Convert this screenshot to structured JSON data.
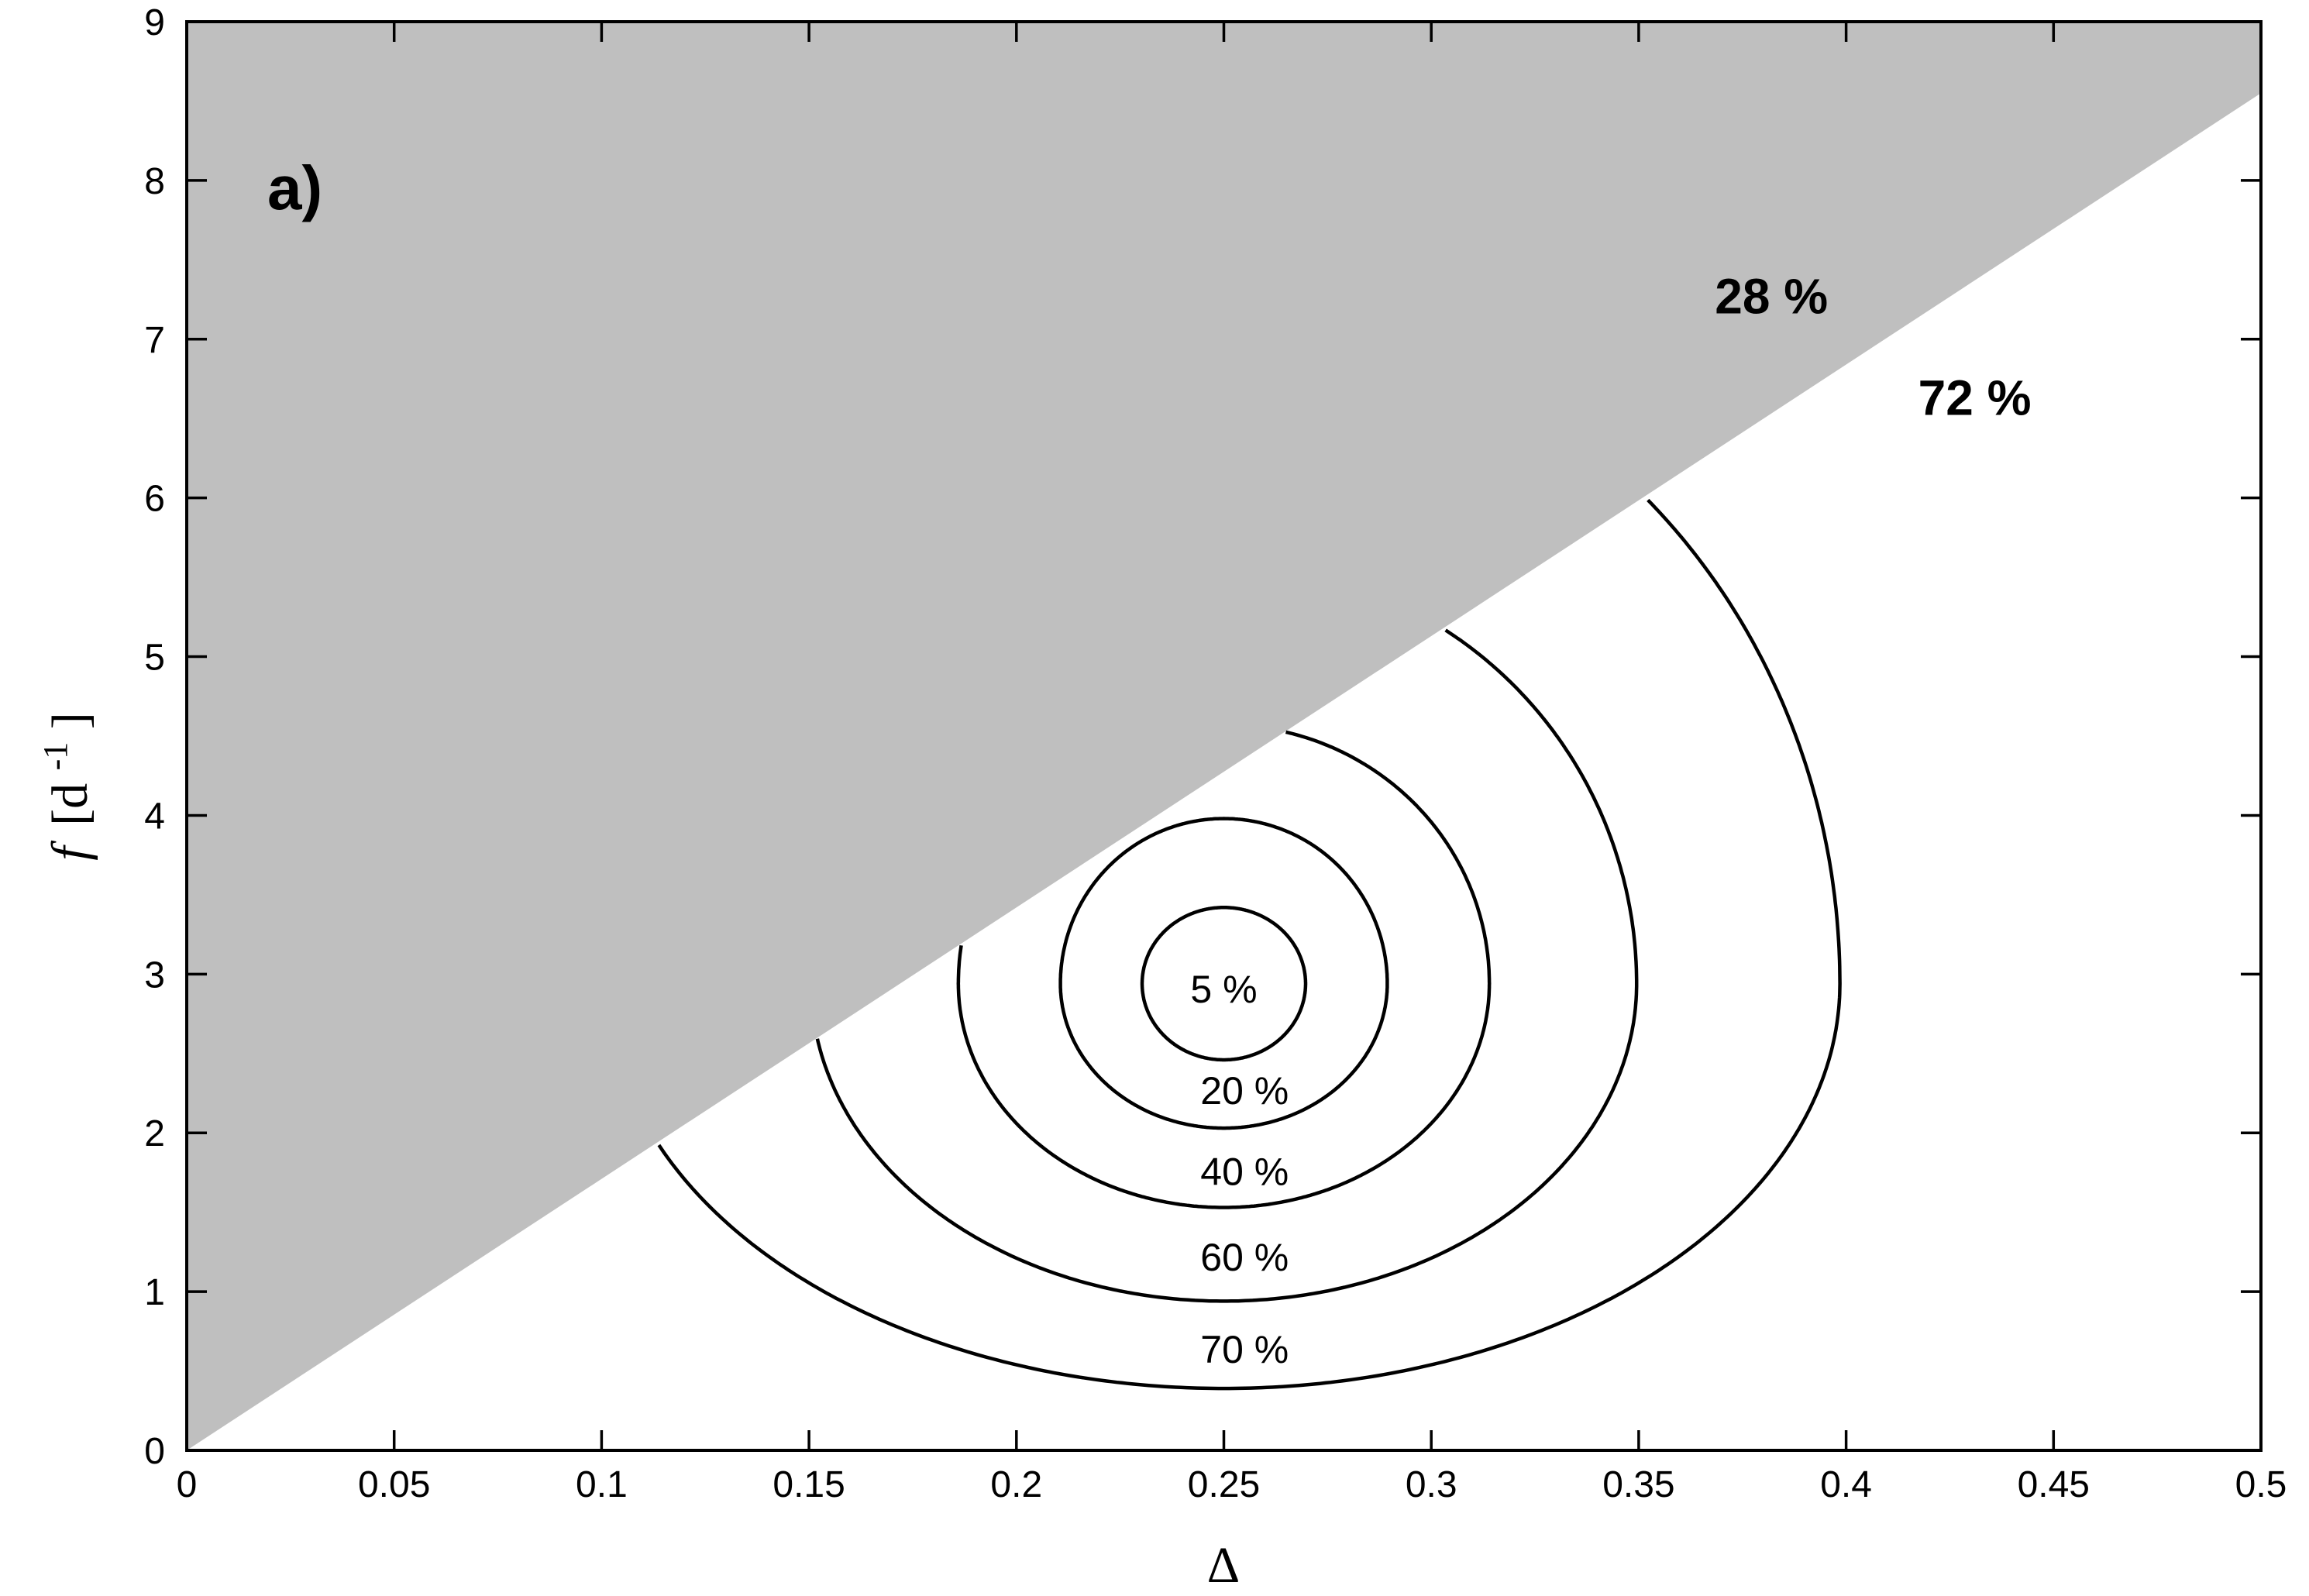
{
  "chart_data": {
    "type": "contour",
    "panel_label": "a)",
    "xlabel": "Δ",
    "ylabel": {
      "var": "f",
      "unit": "[d",
      "sup": "-1",
      "close": "]"
    },
    "xlim": [
      0,
      0.5
    ],
    "ylim": [
      0,
      9
    ],
    "xticks": [
      0,
      0.05,
      0.1,
      0.15,
      0.2,
      0.25,
      0.3,
      0.35,
      0.4,
      0.45,
      0.5
    ],
    "yticks": [
      0,
      1,
      2,
      3,
      4,
      5,
      6,
      7,
      8,
      9
    ],
    "xtick_labels": [
      "0",
      "0.05",
      "0.1",
      "0.15",
      "0.2",
      "0.25",
      "0.3",
      "0.35",
      "0.4",
      "0.45",
      "0.5"
    ],
    "ytick_labels": [
      "0",
      "1",
      "2",
      "3",
      "4",
      "5",
      "6",
      "7",
      "8",
      "9"
    ],
    "shaded_region": {
      "color": "#bfbfbf",
      "boundary": [
        [
          0,
          0
        ],
        [
          0.5,
          8.55
        ]
      ]
    },
    "region_labels": [
      {
        "text": "28 %",
        "x": 0.382,
        "y": 7.27
      },
      {
        "text": "72 %",
        "x": 0.431,
        "y": 6.63
      }
    ],
    "center": {
      "x": 0.25,
      "y": 2.94
    },
    "contours": [
      {
        "level": "5 %",
        "a": 0.0197,
        "b_top": 0.48,
        "b_bottom": 0.48,
        "label": {
          "x": 0.25,
          "y": 2.91
        }
      },
      {
        "level": "20 %",
        "a": 0.0394,
        "b_top": 1.04,
        "b_bottom": 0.91,
        "label": {
          "x": 0.255,
          "y": 2.27
        }
      },
      {
        "level": "40 %",
        "a": 0.064,
        "b_top": 1.63,
        "b_bottom": 1.41,
        "label": {
          "x": 0.255,
          "y": 1.76
        }
      },
      {
        "level": "60 %",
        "a": 0.0995,
        "b_top": 2.64,
        "b_bottom": 2.0,
        "label": {
          "x": 0.255,
          "y": 1.22
        }
      },
      {
        "level": "70 %",
        "a": 0.1485,
        "b_top": 4.2,
        "b_bottom": 2.55,
        "label": {
          "x": 0.255,
          "y": 0.64
        }
      }
    ]
  }
}
